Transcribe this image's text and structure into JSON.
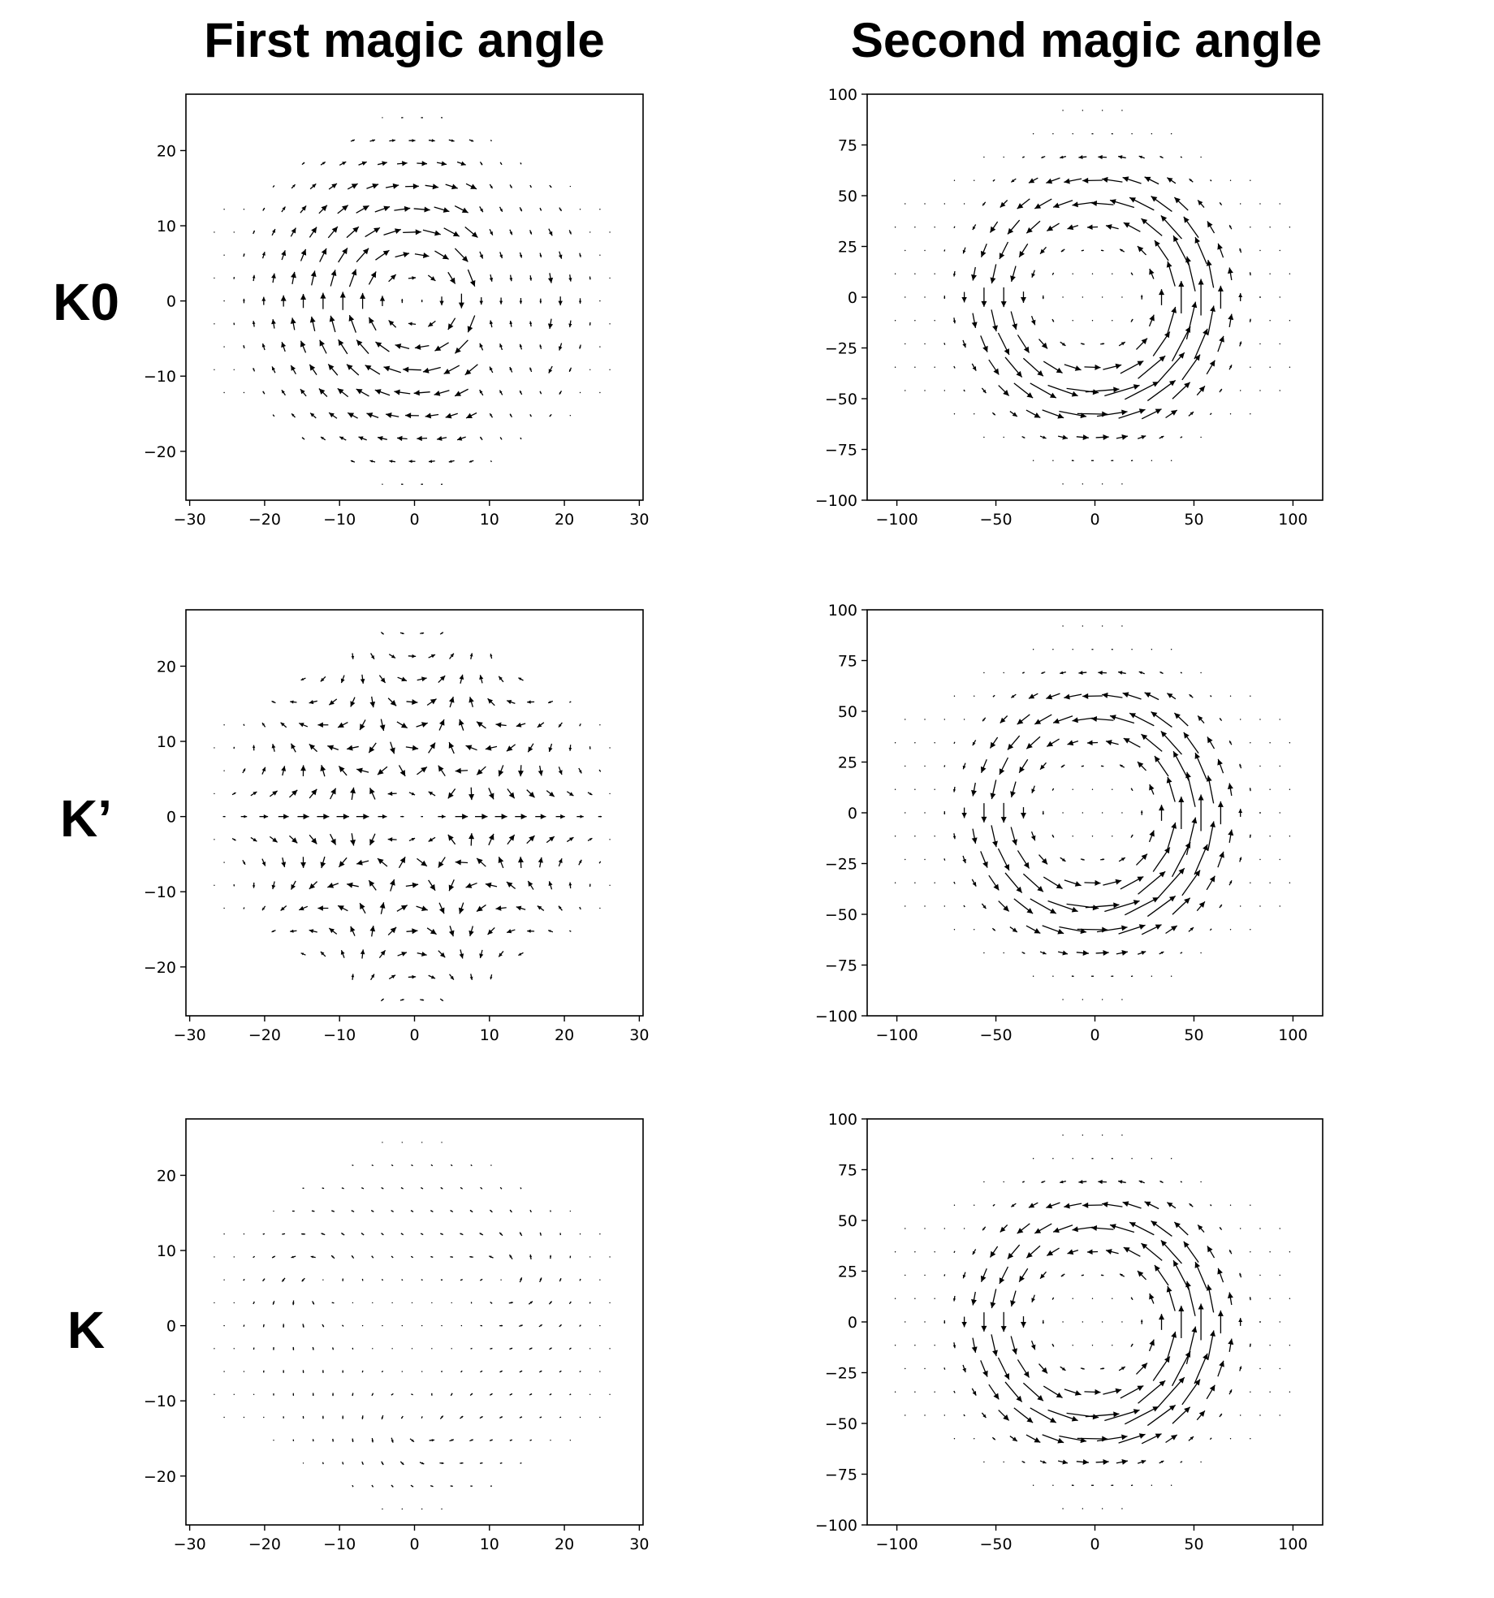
{
  "columns": [
    "First magic angle",
    "Second magic angle"
  ],
  "rows": [
    "K0",
    "K’",
    "K"
  ],
  "chart_data": [
    {
      "type": "quiver",
      "column": "First magic angle",
      "row": "K0",
      "field": "vortex-single",
      "xlim": [
        -30.5,
        30.5
      ],
      "ylim": [
        -26.5,
        27.5
      ],
      "xticks": [
        "−30",
        "−20",
        "−10",
        "0",
        "10",
        "20",
        "30"
      ],
      "xtick_values": [
        -30,
        -20,
        -10,
        0,
        10,
        20,
        30
      ],
      "yticks": [
        "−20",
        "−10",
        "0",
        "10",
        "20"
      ],
      "ytick_values": [
        -20,
        -10,
        0,
        10,
        20
      ]
    },
    {
      "type": "quiver",
      "column": "Second magic angle",
      "row": "K0",
      "field": "vortex-ring",
      "xlim": [
        -115,
        115
      ],
      "ylim": [
        -100,
        100
      ],
      "xticks": [
        "−100",
        "−50",
        "0",
        "50",
        "100"
      ],
      "xtick_values": [
        -100,
        -50,
        0,
        50,
        100
      ],
      "yticks": [
        "−100",
        "−75",
        "−50",
        "−25",
        "0",
        "25",
        "50",
        "75",
        "100"
      ],
      "ytick_values": [
        -100,
        -75,
        -50,
        -25,
        0,
        25,
        50,
        75,
        100
      ]
    },
    {
      "type": "quiver",
      "column": "First magic angle",
      "row": "K’",
      "field": "three-fold-saddle",
      "xlim": [
        -30.5,
        30.5
      ],
      "ylim": [
        -26.5,
        27.5
      ],
      "xticks": [
        "−30",
        "−20",
        "−10",
        "0",
        "10",
        "20",
        "30"
      ],
      "xtick_values": [
        -30,
        -20,
        -10,
        0,
        10,
        20,
        30
      ],
      "yticks": [
        "−20",
        "−10",
        "0",
        "10",
        "20"
      ],
      "ytick_values": [
        -20,
        -10,
        0,
        10,
        20
      ]
    },
    {
      "type": "quiver",
      "column": "Second magic angle",
      "row": "K’",
      "field": "vortex-ring",
      "xlim": [
        -115,
        115
      ],
      "ylim": [
        -100,
        100
      ],
      "xticks": [
        "−100",
        "−50",
        "0",
        "50",
        "100"
      ],
      "xtick_values": [
        -100,
        -50,
        0,
        50,
        100
      ],
      "yticks": [
        "−100",
        "−75",
        "−50",
        "−25",
        "0",
        "25",
        "50",
        "75",
        "100"
      ],
      "ytick_values": [
        -100,
        -75,
        -50,
        -25,
        0,
        25,
        50,
        75,
        100
      ]
    },
    {
      "type": "quiver",
      "column": "First magic angle",
      "row": "K",
      "field": "three-fold-sources",
      "xlim": [
        -30.5,
        30.5
      ],
      "ylim": [
        -26.5,
        27.5
      ],
      "xticks": [
        "−30",
        "−20",
        "−10",
        "0",
        "10",
        "20",
        "30"
      ],
      "xtick_values": [
        -30,
        -20,
        -10,
        0,
        10,
        20,
        30
      ],
      "yticks": [
        "−20",
        "−10",
        "0",
        "10",
        "20"
      ],
      "ytick_values": [
        -20,
        -10,
        0,
        10,
        20
      ]
    },
    {
      "type": "quiver",
      "column": "Second magic angle",
      "row": "K",
      "field": "vortex-ring",
      "xlim": [
        -115,
        115
      ],
      "ylim": [
        -100,
        100
      ],
      "xticks": [
        "−100",
        "−50",
        "0",
        "50",
        "100"
      ],
      "xtick_values": [
        -100,
        -50,
        0,
        50,
        100
      ],
      "yticks": [
        "−100",
        "−75",
        "−50",
        "−25",
        "0",
        "25",
        "50",
        "75",
        "100"
      ],
      "ytick_values": [
        -100,
        -75,
        -50,
        -25,
        0,
        25,
        50,
        75,
        100
      ]
    }
  ]
}
